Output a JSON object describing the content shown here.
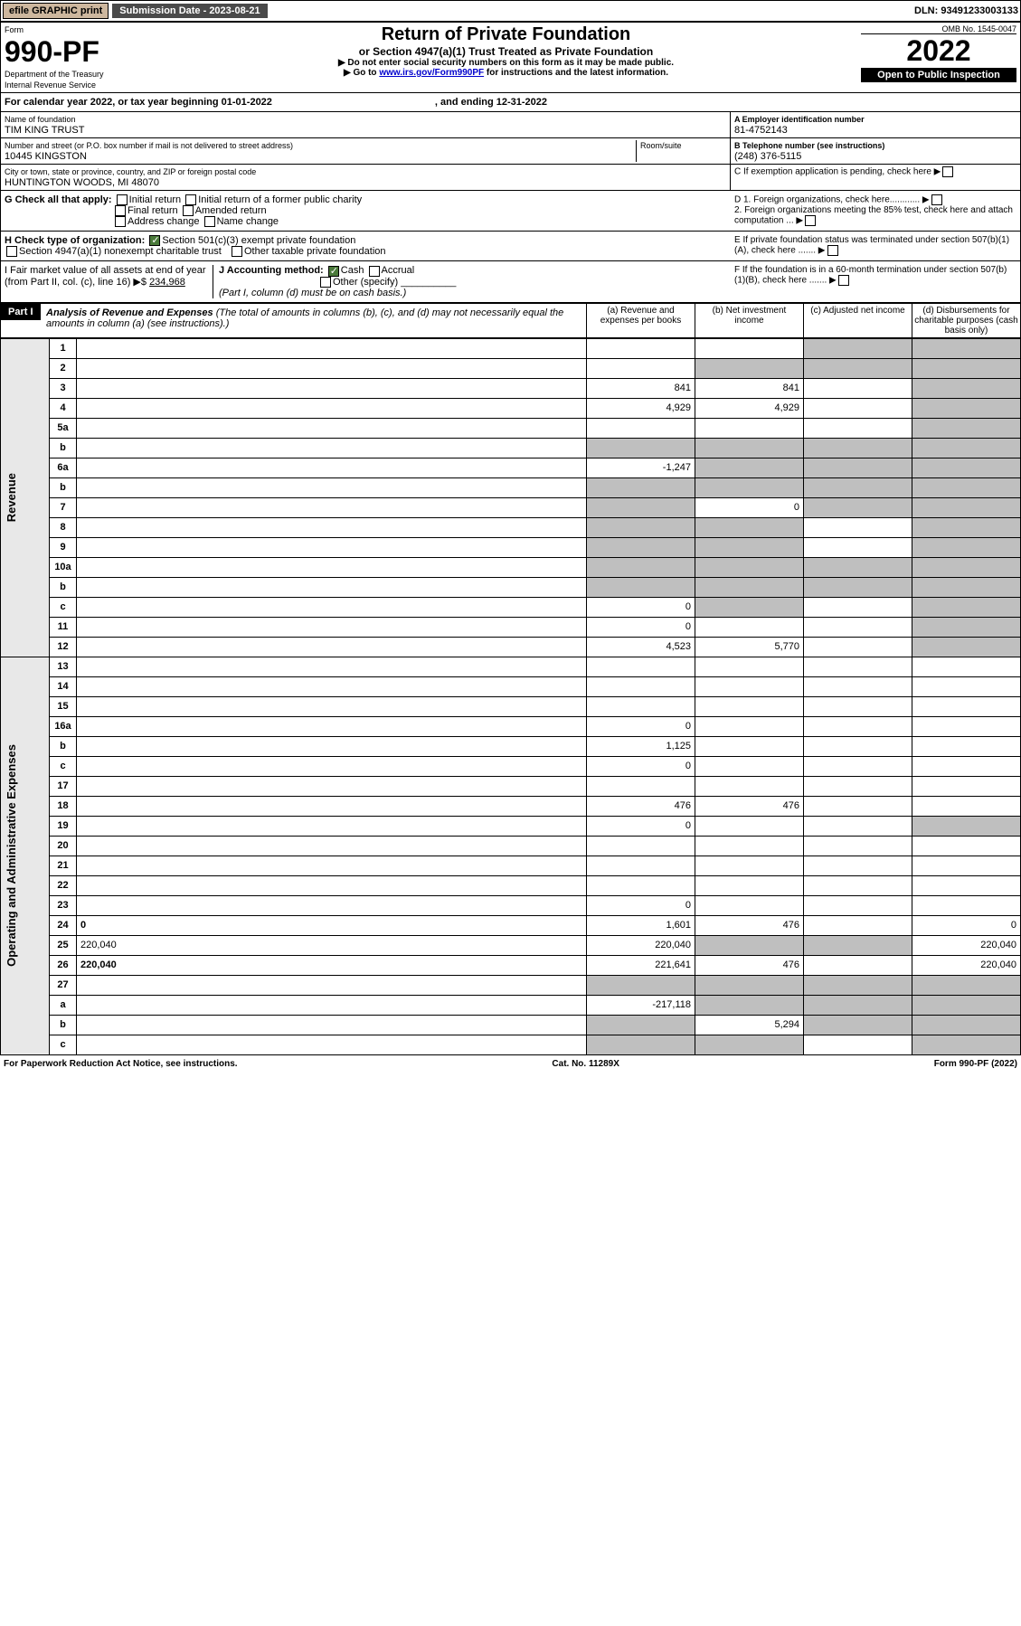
{
  "top": {
    "efile": "efile GRAPHIC print",
    "sub_label": "Submission Date - 2023-08-21",
    "dln": "DLN: 93491233003133"
  },
  "hdr": {
    "form": "Form",
    "form_no": "990-PF",
    "dept": "Department of the Treasury",
    "irs": "Internal Revenue Service",
    "title": "Return of Private Foundation",
    "sub": "or Section 4947(a)(1) Trust Treated as Private Foundation",
    "note1": "▶ Do not enter social security numbers on this form as it may be made public.",
    "note2": "▶ Go to ",
    "link": "www.irs.gov/Form990PF",
    "note3": " for instructions and the latest information.",
    "omb": "OMB No. 1545-0047",
    "year": "2022",
    "open": "Open to Public Inspection"
  },
  "cal": {
    "text": "For calendar year 2022, or tax year beginning 01-01-2022",
    "end": ", and ending 12-31-2022"
  },
  "id": {
    "name_lbl": "Name of foundation",
    "name": "TIM KING TRUST",
    "addr_lbl": "Number and street (or P.O. box number if mail is not delivered to street address)",
    "room": "Room/suite",
    "addr": "10445 KINGSTON",
    "city_lbl": "City or town, state or province, country, and ZIP or foreign postal code",
    "city": "HUNTINGTON WOODS, MI  48070",
    "ein_lbl": "A Employer identification number",
    "ein": "81-4752143",
    "tel_lbl": "B Telephone number (see instructions)",
    "tel": "(248) 376-5115",
    "c": "C If exemption application is pending, check here",
    "d1": "D 1. Foreign organizations, check here............",
    "d2": "2. Foreign organizations meeting the 85% test, check here and attach computation ...",
    "e": "E  If private foundation status was terminated under section 507(b)(1)(A), check here .......",
    "f": "F  If the foundation is in a 60-month termination under section 507(b)(1)(B), check here ......."
  },
  "g": {
    "lbl": "G Check all that apply:",
    "i1": "Initial return",
    "i2": "Initial return of a former public charity",
    "f1": "Final return",
    "a1": "Amended return",
    "ac": "Address change",
    "nc": "Name change"
  },
  "h": {
    "lbl": "H Check type of organization:",
    "s1": "Section 501(c)(3) exempt private foundation",
    "s2": "Section 4947(a)(1) nonexempt charitable trust",
    "s3": "Other taxable private foundation"
  },
  "i": {
    "lbl": "I Fair market value of all assets at end of year (from Part II, col. (c), line 16) ▶$",
    "val": "234,968"
  },
  "j": {
    "lbl": "J Accounting method:",
    "cash": "Cash",
    "acc": "Accrual",
    "other": "Other (specify)",
    "note": "(Part I, column (d) must be on cash basis.)"
  },
  "part1": {
    "lbl": "Part I",
    "title": "Analysis of Revenue and Expenses",
    "note": "(The total of amounts in columns (b), (c), and (d) may not necessarily equal the amounts in column (a) (see instructions).)",
    "cols": {
      "a": "(a) Revenue and expenses per books",
      "b": "(b) Net investment income",
      "c": "(c) Adjusted net income",
      "d": "(d) Disbursements for charitable purposes (cash basis only)"
    }
  },
  "side": {
    "rev": "Revenue",
    "exp": "Operating and Administrative Expenses"
  },
  "lines": [
    {
      "n": "1",
      "d": "",
      "a": "",
      "b": "",
      "c": "",
      "cg": true,
      "dg": true
    },
    {
      "n": "2",
      "d": "",
      "a": "",
      "b": "",
      "c": "",
      "bg": true,
      "cg": true,
      "dg": true,
      "bold": false
    },
    {
      "n": "3",
      "d": "",
      "a": "841",
      "b": "841",
      "c": "",
      "dg": true
    },
    {
      "n": "4",
      "d": "",
      "a": "4,929",
      "b": "4,929",
      "c": "",
      "dg": true
    },
    {
      "n": "5a",
      "d": "",
      "a": "",
      "b": "",
      "c": "",
      "dg": true
    },
    {
      "n": "b",
      "d": "",
      "a": "",
      "b": "",
      "c": "",
      "ag": true,
      "bg": true,
      "cg": true,
      "dg": true
    },
    {
      "n": "6a",
      "d": "",
      "a": "-1,247",
      "b": "",
      "c": "",
      "bg": true,
      "cg": true,
      "dg": true
    },
    {
      "n": "b",
      "d": "",
      "a": "",
      "b": "",
      "c": "",
      "ag": true,
      "bg": true,
      "cg": true,
      "dg": true
    },
    {
      "n": "7",
      "d": "",
      "a": "",
      "b": "0",
      "c": "",
      "ag": true,
      "cg": true,
      "dg": true
    },
    {
      "n": "8",
      "d": "",
      "a": "",
      "b": "",
      "c": "",
      "ag": true,
      "bg": true,
      "dg": true
    },
    {
      "n": "9",
      "d": "",
      "a": "",
      "b": "",
      "c": "",
      "ag": true,
      "bg": true,
      "dg": true
    },
    {
      "n": "10a",
      "d": "",
      "a": "",
      "b": "",
      "c": "",
      "ag": true,
      "bg": true,
      "cg": true,
      "dg": true
    },
    {
      "n": "b",
      "d": "",
      "a": "",
      "b": "",
      "c": "",
      "ag": true,
      "bg": true,
      "cg": true,
      "dg": true
    },
    {
      "n": "c",
      "d": "",
      "a": "0",
      "b": "",
      "c": "",
      "bg": true,
      "dg": true
    },
    {
      "n": "11",
      "d": "",
      "a": "0",
      "b": "",
      "c": "",
      "dg": true
    },
    {
      "n": "12",
      "d": "",
      "a": "4,523",
      "b": "5,770",
      "c": "",
      "dg": true,
      "bold": true
    },
    {
      "n": "13",
      "d": "",
      "a": "",
      "b": "",
      "c": ""
    },
    {
      "n": "14",
      "d": "",
      "a": "",
      "b": "",
      "c": ""
    },
    {
      "n": "15",
      "d": "",
      "a": "",
      "b": "",
      "c": ""
    },
    {
      "n": "16a",
      "d": "",
      "a": "0",
      "b": "",
      "c": ""
    },
    {
      "n": "b",
      "d": "",
      "a": "1,125",
      "b": "",
      "c": ""
    },
    {
      "n": "c",
      "d": "",
      "a": "0",
      "b": "",
      "c": ""
    },
    {
      "n": "17",
      "d": "",
      "a": "",
      "b": "",
      "c": ""
    },
    {
      "n": "18",
      "d": "",
      "a": "476",
      "b": "476",
      "c": ""
    },
    {
      "n": "19",
      "d": "",
      "a": "0",
      "b": "",
      "c": "",
      "dg": true
    },
    {
      "n": "20",
      "d": "",
      "a": "",
      "b": "",
      "c": ""
    },
    {
      "n": "21",
      "d": "",
      "a": "",
      "b": "",
      "c": ""
    },
    {
      "n": "22",
      "d": "",
      "a": "",
      "b": "",
      "c": ""
    },
    {
      "n": "23",
      "d": "",
      "a": "0",
      "b": "",
      "c": ""
    },
    {
      "n": "24",
      "d": "0",
      "a": "1,601",
      "b": "476",
      "c": "",
      "bold": true
    },
    {
      "n": "25",
      "d": "220,040",
      "a": "220,040",
      "b": "",
      "c": "",
      "bg": true,
      "cg": true
    },
    {
      "n": "26",
      "d": "220,040",
      "a": "221,641",
      "b": "476",
      "c": "",
      "bold": true
    },
    {
      "n": "27",
      "d": "",
      "a": "",
      "b": "",
      "c": "",
      "ag": true,
      "bg": true,
      "cg": true,
      "dg": true
    },
    {
      "n": "a",
      "d": "",
      "a": "-217,118",
      "b": "",
      "c": "",
      "bg": true,
      "cg": true,
      "dg": true,
      "bold": true
    },
    {
      "n": "b",
      "d": "",
      "a": "",
      "b": "5,294",
      "c": "",
      "ag": true,
      "cg": true,
      "dg": true,
      "bold": true
    },
    {
      "n": "c",
      "d": "",
      "a": "",
      "b": "",
      "c": "",
      "ag": true,
      "bg": true,
      "dg": true,
      "bold": true
    }
  ],
  "foot": {
    "pra": "For Paperwork Reduction Act Notice, see instructions.",
    "cat": "Cat. No. 11289X",
    "form": "Form 990-PF (2022)"
  }
}
